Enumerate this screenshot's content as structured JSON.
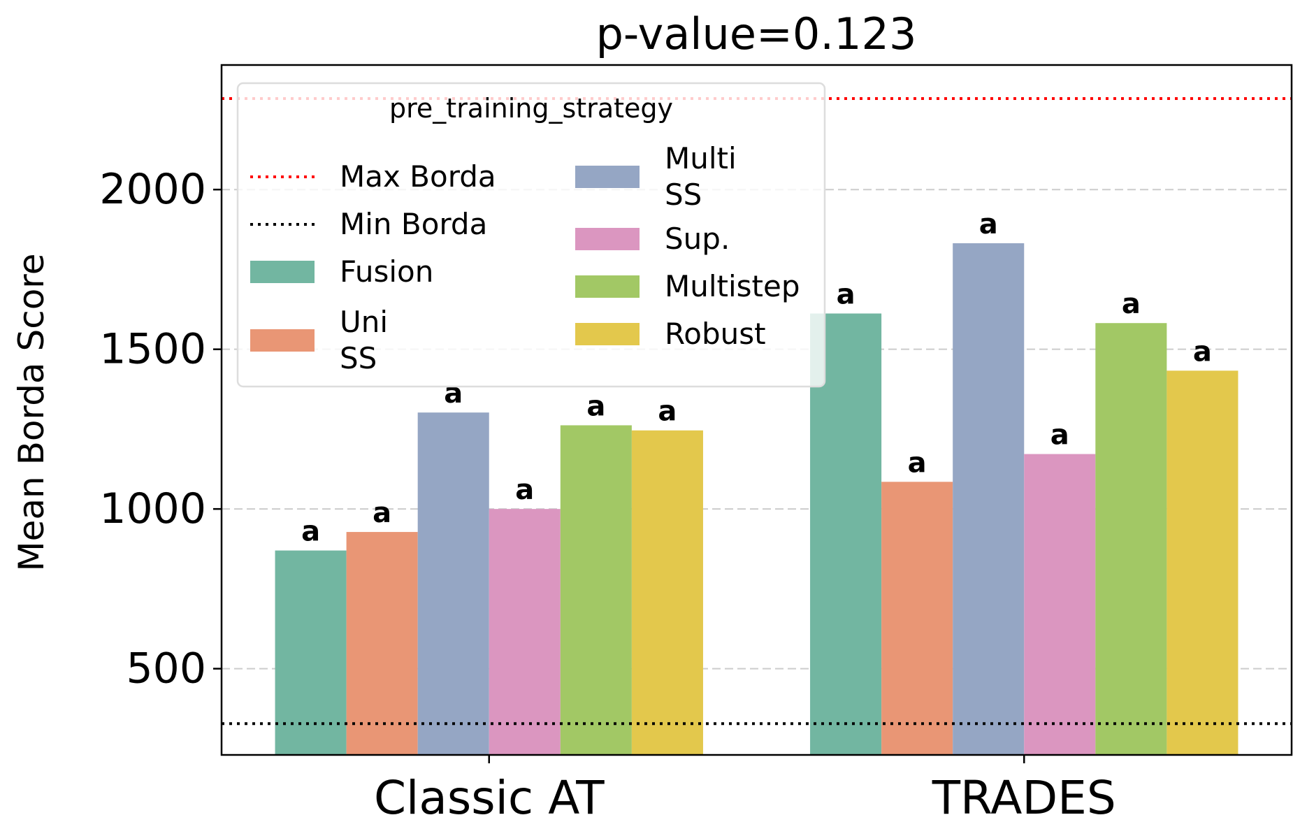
{
  "chart_data": {
    "type": "bar",
    "title": "p-value=0.123",
    "xlabel": "",
    "ylabel": "Mean Borda Score",
    "categories": [
      "Classic AT",
      "TRADES"
    ],
    "yticks": [
      500,
      1000,
      1500,
      2000
    ],
    "ylim": [
      230,
      2390
    ],
    "grid": "y, dashed",
    "legend_title": "pre_training_strategy",
    "legend_placement": "upper-left",
    "reference_lines": [
      {
        "name": "Max Borda",
        "value": 2285,
        "color": "#ff0000"
      },
      {
        "name": "Min Borda",
        "value": 328,
        "color": "#000000"
      }
    ],
    "series": [
      {
        "name": "Fusion",
        "color": "#72b6a1",
        "values": [
          870,
          1612
        ],
        "labels": [
          "a",
          "a"
        ]
      },
      {
        "name": "Uni\nSS",
        "color": "#e99675",
        "values": [
          928,
          1085
        ],
        "labels": [
          "a",
          "a"
        ]
      },
      {
        "name": "Multi\nSS",
        "color": "#95a6c4",
        "values": [
          1302,
          1832
        ],
        "labels": [
          "a",
          "a"
        ]
      },
      {
        "name": "Sup.",
        "color": "#db96c0",
        "values": [
          1000,
          1172
        ],
        "labels": [
          "a",
          "a"
        ]
      },
      {
        "name": "Multistep",
        "color": "#a2c865",
        "values": [
          1262,
          1582
        ],
        "labels": [
          "a",
          "a"
        ]
      },
      {
        "name": "Robust",
        "color": "#e3c84c",
        "values": [
          1246,
          1433
        ],
        "labels": [
          "a",
          "a"
        ]
      }
    ]
  }
}
